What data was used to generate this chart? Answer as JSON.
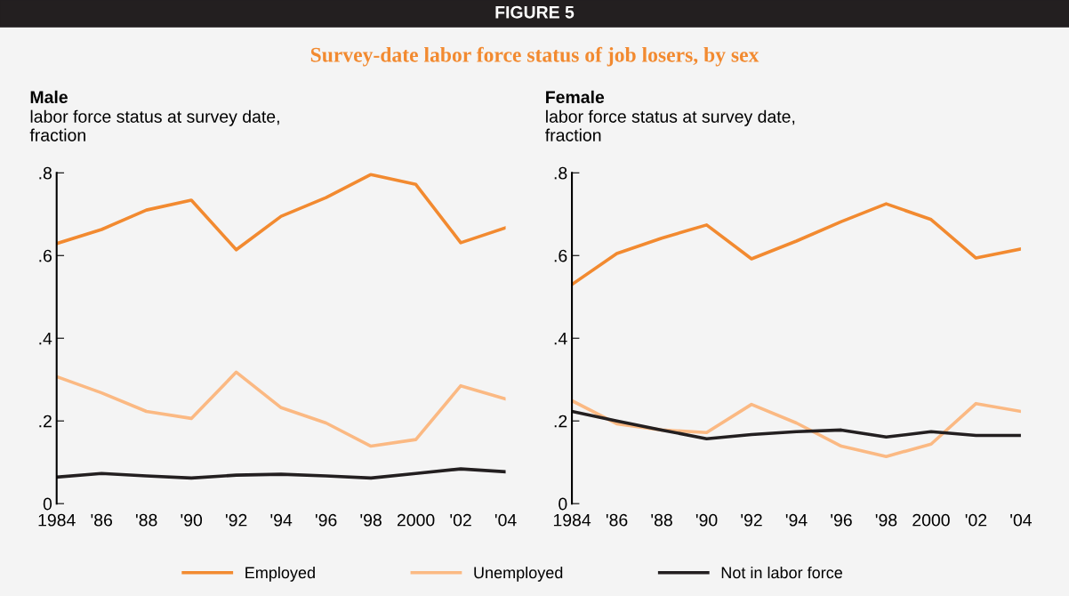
{
  "chart_data": [
    {
      "type": "line",
      "title": "Male",
      "ylabel": "labor force status at survey date,\nfraction",
      "annotations": [
        "FIGURE 5",
        "Survey-date labor force status of job losers, by sex"
      ],
      "x": [
        1984,
        1986,
        1988,
        1990,
        1992,
        1994,
        1996,
        1998,
        2000,
        2002,
        2004
      ],
      "xlim": [
        1984,
        2004
      ],
      "xticks": [
        {
          "value": 1984,
          "label": "1984"
        },
        {
          "value": 1986,
          "label": "'86"
        },
        {
          "value": 1988,
          "label": "'88"
        },
        {
          "value": 1990,
          "label": "'90"
        },
        {
          "value": 1992,
          "label": "'92"
        },
        {
          "value": 1994,
          "label": "'94"
        },
        {
          "value": 1996,
          "label": "'96"
        },
        {
          "value": 1998,
          "label": "'98"
        },
        {
          "value": 2000,
          "label": "2000"
        },
        {
          "value": 2002,
          "label": "'02"
        },
        {
          "value": 2004,
          "label": "'04"
        }
      ],
      "ylim": [
        0,
        0.8
      ],
      "yticks": [
        {
          "value": 0,
          "label": "0"
        },
        {
          "value": 0.2,
          "label": ".2"
        },
        {
          "value": 0.4,
          "label": ".4"
        },
        {
          "value": 0.6,
          "label": ".6"
        },
        {
          "value": 0.8,
          "label": ".8"
        }
      ],
      "grid": false,
      "legend": "bottom",
      "series": [
        {
          "name": "Employed",
          "color": "#f28a30",
          "values": [
            0.629,
            0.663,
            0.71,
            0.734,
            0.614,
            0.695,
            0.74,
            0.796,
            0.772,
            0.631,
            0.667
          ]
        },
        {
          "name": "Unemployed",
          "color": "#fbb983",
          "values": [
            0.307,
            0.268,
            0.223,
            0.206,
            0.318,
            0.232,
            0.195,
            0.139,
            0.155,
            0.285,
            0.253
          ]
        },
        {
          "name": "Not in labor force",
          "color": "#231f20",
          "values": [
            0.064,
            0.073,
            0.067,
            0.062,
            0.069,
            0.071,
            0.067,
            0.062,
            0.073,
            0.084,
            0.077
          ]
        }
      ]
    },
    {
      "type": "line",
      "title": "Female",
      "ylabel": "labor force status at survey date,\nfraction",
      "x": [
        1984,
        1986,
        1988,
        1990,
        1992,
        1994,
        1996,
        1998,
        2000,
        2002,
        2004
      ],
      "xlim": [
        1984,
        2004
      ],
      "xticks": [
        {
          "value": 1984,
          "label": "1984"
        },
        {
          "value": 1986,
          "label": "'86"
        },
        {
          "value": 1988,
          "label": "'88"
        },
        {
          "value": 1990,
          "label": "'90"
        },
        {
          "value": 1992,
          "label": "'92"
        },
        {
          "value": 1994,
          "label": "'94"
        },
        {
          "value": 1996,
          "label": "'96"
        },
        {
          "value": 1998,
          "label": "'98"
        },
        {
          "value": 2000,
          "label": "2000"
        },
        {
          "value": 2002,
          "label": "'02"
        },
        {
          "value": 2004,
          "label": "'04"
        }
      ],
      "ylim": [
        0,
        0.8
      ],
      "yticks": [
        {
          "value": 0,
          "label": "0"
        },
        {
          "value": 0.2,
          "label": ".2"
        },
        {
          "value": 0.4,
          "label": ".4"
        },
        {
          "value": 0.6,
          "label": ".6"
        },
        {
          "value": 0.8,
          "label": ".8"
        }
      ],
      "grid": false,
      "series": [
        {
          "color": "#f28a30",
          "values": [
            0.53,
            0.605,
            0.642,
            0.674,
            0.592,
            0.635,
            0.682,
            0.725,
            0.687,
            0.594,
            0.616
          ]
        },
        {
          "color": "#fbb983",
          "values": [
            0.249,
            0.193,
            0.178,
            0.172,
            0.24,
            0.195,
            0.139,
            0.114,
            0.144,
            0.242,
            0.223
          ]
        },
        {
          "color": "#231f20",
          "values": [
            0.223,
            0.2,
            0.178,
            0.157,
            0.167,
            0.174,
            0.178,
            0.161,
            0.174,
            0.165,
            0.165
          ]
        }
      ]
    }
  ]
}
